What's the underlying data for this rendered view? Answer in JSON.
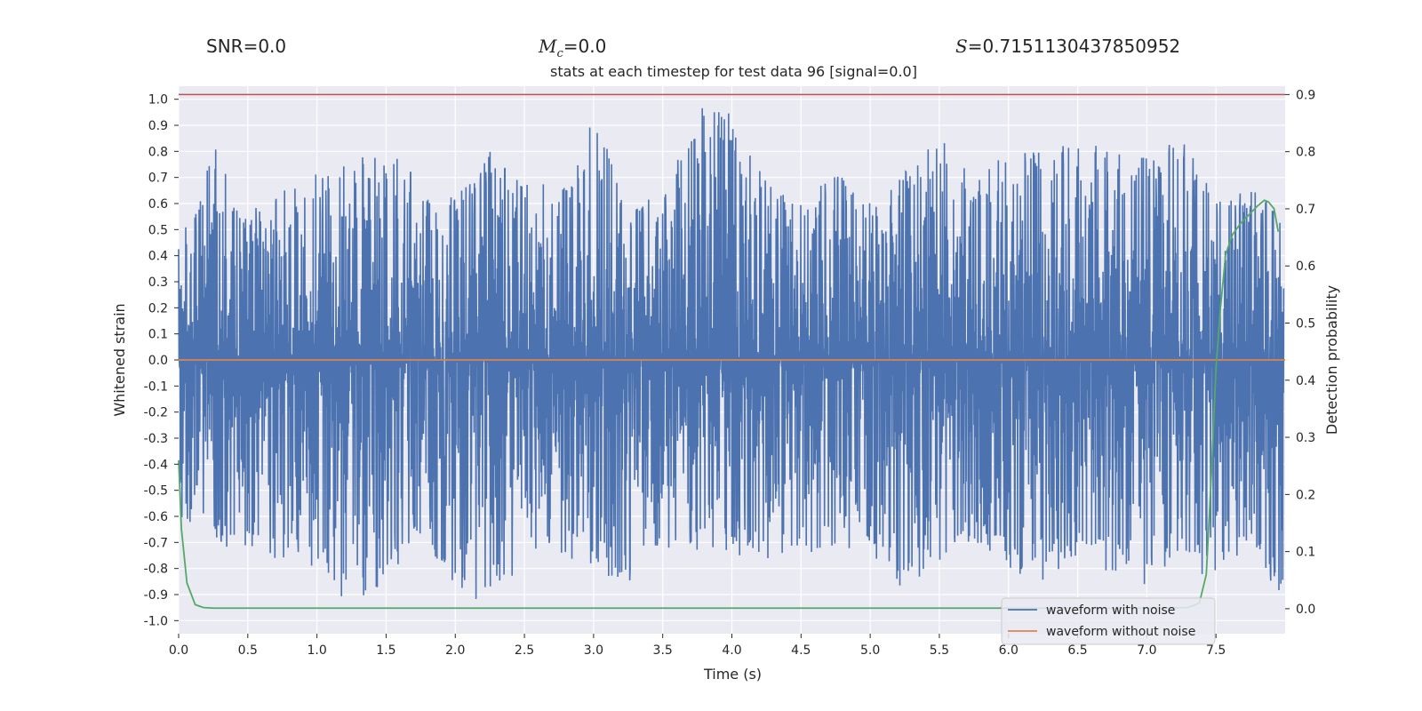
{
  "stats": {
    "snr_label": "SNR",
    "snr_value": "=0.0",
    "mc_symbol": "M",
    "mc_sub": "c",
    "mc_value": "=0.0",
    "s_symbol": "S",
    "s_value": "=0.7151130437850952"
  },
  "colors": {
    "plot_background": "#eaeaf2",
    "grid": "#ffffff",
    "noisy_waveform": "#4c72b0",
    "clean_waveform": "#dd8452",
    "detection_probability": "#55a868",
    "threshold_line": "#c44e52"
  },
  "chart_data": {
    "type": "line",
    "title": "stats at each timestep for test data 96 [signal=0.0]",
    "xlabel": "Time (s)",
    "ylabel": "Whitened strain",
    "y2label": "Detection probability",
    "xlim": [
      0,
      8
    ],
    "ylim": [
      -1.05,
      1.05
    ],
    "y2lim": [
      -0.0437,
      0.9146
    ],
    "x_ticks": [
      "0.0",
      "0.5",
      "1.0",
      "1.5",
      "2.0",
      "2.5",
      "3.0",
      "3.5",
      "4.0",
      "4.5",
      "5.0",
      "5.5",
      "6.0",
      "6.5",
      "7.0",
      "7.5"
    ],
    "y_ticks": [
      "1.0",
      "0.9",
      "0.8",
      "0.7",
      "0.6",
      "0.5",
      "0.4",
      "0.3",
      "0.2",
      "0.1",
      "0.0",
      "-0.1",
      "-0.2",
      "-0.3",
      "-0.4",
      "-0.5",
      "-0.6",
      "-0.7",
      "-0.8",
      "-0.9",
      "-1.0"
    ],
    "y2_ticks": [
      "0.9",
      "0.8",
      "0.7",
      "0.6",
      "0.5",
      "0.4",
      "0.3",
      "0.2",
      "0.1",
      "0.0"
    ],
    "grid": true,
    "legend": "bottom-right",
    "threshold_line": {
      "axis": "right",
      "value": 0.9
    },
    "series": [
      {
        "name": "waveform with noise",
        "axis": "left",
        "style": "dense noise, envelope approx",
        "upper_envelope": {
          "x": [
            0.0,
            0.25,
            0.5,
            0.75,
            1.0,
            1.25,
            1.5,
            1.75,
            2.0,
            2.25,
            2.5,
            2.75,
            3.0,
            3.25,
            3.5,
            3.75,
            3.93,
            4.25,
            4.5,
            4.75,
            5.0,
            5.25,
            5.5,
            5.75,
            6.0,
            6.25,
            6.5,
            6.75,
            7.0,
            7.25,
            7.5,
            7.75,
            7.95
          ],
          "y": [
            0.45,
            0.83,
            0.57,
            0.66,
            0.73,
            0.76,
            0.82,
            0.7,
            0.62,
            0.8,
            0.68,
            0.67,
            0.95,
            0.6,
            0.63,
            0.97,
            1.0,
            0.68,
            0.6,
            0.72,
            0.62,
            0.75,
            0.86,
            0.69,
            0.8,
            0.8,
            0.87,
            0.79,
            0.8,
            0.86,
            0.61,
            0.66,
            0.6
          ]
        },
        "lower_envelope": {
          "x": [
            0.0,
            0.25,
            0.5,
            0.75,
            1.0,
            1.18,
            1.5,
            1.75,
            2.0,
            2.15,
            2.5,
            2.75,
            3.0,
            3.25,
            3.5,
            3.75,
            4.0,
            4.25,
            4.5,
            4.75,
            5.0,
            5.19,
            5.5,
            5.75,
            6.0,
            6.25,
            6.5,
            6.75,
            7.0,
            7.25,
            7.5,
            7.75,
            7.95
          ],
          "y": [
            -0.6,
            -0.7,
            -0.76,
            -0.77,
            -0.8,
            -0.95,
            -0.87,
            -0.72,
            -0.87,
            -0.92,
            -0.81,
            -0.75,
            -0.8,
            -0.88,
            -0.72,
            -0.73,
            -0.75,
            -0.79,
            -0.74,
            -0.75,
            -0.72,
            -0.93,
            -0.77,
            -0.7,
            -0.82,
            -0.85,
            -0.75,
            -0.82,
            -0.89,
            -0.79,
            -0.85,
            -0.69,
            -0.93
          ]
        }
      },
      {
        "name": "waveform without noise",
        "axis": "left",
        "x": [
          0,
          8
        ],
        "y": [
          0.0,
          0.0
        ]
      },
      {
        "name": "",
        "axis": "right",
        "x": [
          0.0,
          0.02,
          0.06,
          0.12,
          0.18,
          0.25,
          0.5,
          1.0,
          2.0,
          3.0,
          4.0,
          5.0,
          6.0,
          7.0,
          7.3,
          7.38,
          7.43,
          7.47,
          7.5,
          7.53,
          7.57,
          7.62,
          7.68,
          7.74,
          7.8,
          7.85,
          7.88,
          7.92,
          7.95
        ],
        "y": [
          0.26,
          0.14,
          0.045,
          0.007,
          0.002,
          0.001,
          0.001,
          0.001,
          0.001,
          0.001,
          0.001,
          0.001,
          0.001,
          0.001,
          0.002,
          0.01,
          0.06,
          0.25,
          0.42,
          0.52,
          0.62,
          0.655,
          0.675,
          0.69,
          0.705,
          0.715,
          0.712,
          0.7,
          0.66
        ]
      }
    ]
  }
}
